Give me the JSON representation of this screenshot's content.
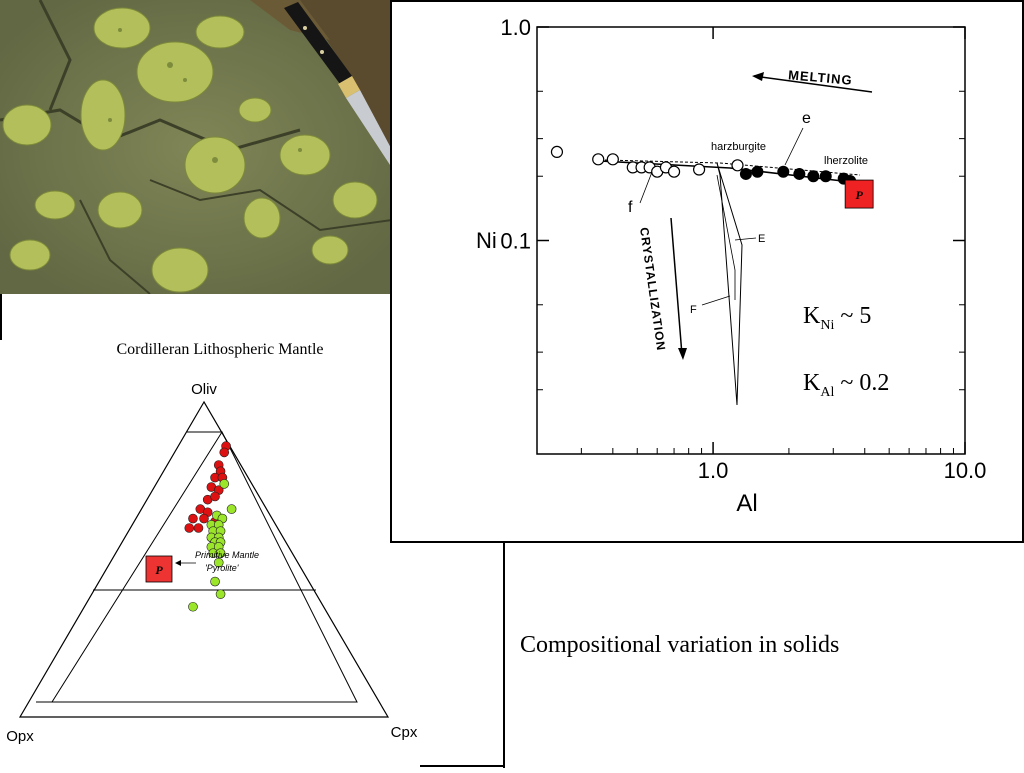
{
  "caption": "Compositional variation in solids",
  "ternary": {
    "title": "Cordilleran Lithospheric Mantle",
    "apex_top": "Oliv",
    "apex_left": "Opx",
    "apex_right": "Cpx",
    "pyrolite_symbol": "P",
    "pyrolite_note_line1": "Primitive Mantle",
    "pyrolite_note_line2": "'Pyrolite'",
    "colors": {
      "red_points": "#dd1111",
      "green_points": "#9be52a",
      "pyrolite": "#ee3333"
    }
  },
  "chart_data": [
    {
      "type": "scatter",
      "title": "",
      "xlabel": "Al",
      "ylabel": "Ni",
      "x_scale": "log",
      "y_scale": "log",
      "xlim": [
        0.2,
        10.0
      ],
      "ylim": [
        0.01,
        1.0
      ],
      "x_tick_labels": [
        "1.0",
        "10.0"
      ],
      "y_tick_labels": [
        "0.1",
        "1.0"
      ],
      "series": [
        {
          "name": "harzburgite",
          "points": [
            [
              0.24,
              0.26
            ],
            [
              0.35,
              0.24
            ],
            [
              0.4,
              0.24
            ],
            [
              0.48,
              0.22
            ],
            [
              0.52,
              0.22
            ],
            [
              0.56,
              0.22
            ],
            [
              0.6,
              0.21
            ],
            [
              0.65,
              0.22
            ],
            [
              0.7,
              0.21
            ],
            [
              0.88,
              0.215
            ],
            [
              1.25,
              0.225
            ]
          ]
        },
        {
          "name": "lherzolite",
          "points": [
            [
              1.35,
              0.205
            ],
            [
              1.5,
              0.21
            ],
            [
              1.9,
              0.21
            ],
            [
              2.2,
              0.205
            ],
            [
              2.5,
              0.2
            ],
            [
              2.8,
              0.2
            ],
            [
              3.3,
              0.195
            ],
            [
              3.5,
              0.19
            ]
          ]
        }
      ],
      "primitive_mantle": {
        "symbol": "P",
        "x": 3.8,
        "y": 0.165
      },
      "annotations": {
        "melting": "MELTING",
        "crystallization": "CRYSTALLIZATION",
        "label_e": "e",
        "label_f": "f",
        "label_E": "E",
        "label_F": "F",
        "harzburgite": "harzburgite",
        "lherzolite": "lherzolite"
      },
      "partition_coefficients": [
        {
          "base": "K",
          "sub": "Ni",
          "rest": " ~ 5"
        },
        {
          "base": "K",
          "sub": "Al",
          "rest": " ~ 0.2"
        }
      ]
    },
    {
      "type": "scatter",
      "title": "Cordilleran Lithospheric Mantle",
      "axes": [
        "Oliv",
        "Opx",
        "Cpx"
      ],
      "series": [
        {
          "name": "red points",
          "points_xy": [
            [
              0.56,
              0.86
            ],
            [
              0.555,
              0.84
            ],
            [
              0.54,
              0.8
            ],
            [
              0.545,
              0.78
            ],
            [
              0.53,
              0.76
            ],
            [
              0.55,
              0.76
            ],
            [
              0.52,
              0.73
            ],
            [
              0.54,
              0.72
            ],
            [
              0.51,
              0.69
            ],
            [
              0.53,
              0.7
            ],
            [
              0.49,
              0.66
            ],
            [
              0.51,
              0.65
            ],
            [
              0.47,
              0.63
            ],
            [
              0.5,
              0.63
            ],
            [
              0.46,
              0.6
            ],
            [
              0.485,
              0.6
            ],
            [
              0.53,
              0.62
            ]
          ]
        },
        {
          "name": "green points",
          "points_xy": [
            [
              0.555,
              0.74
            ],
            [
              0.575,
              0.66
            ],
            [
              0.535,
              0.64
            ],
            [
              0.55,
              0.63
            ],
            [
              0.52,
              0.61
            ],
            [
              0.54,
              0.61
            ],
            [
              0.525,
              0.59
            ],
            [
              0.545,
              0.59
            ],
            [
              0.52,
              0.57
            ],
            [
              0.54,
              0.57
            ],
            [
              0.53,
              0.555
            ],
            [
              0.545,
              0.555
            ],
            [
              0.52,
              0.54
            ],
            [
              0.54,
              0.54
            ],
            [
              0.525,
              0.52
            ],
            [
              0.545,
              0.52
            ],
            [
              0.54,
              0.49
            ],
            [
              0.53,
              0.43
            ],
            [
              0.545,
              0.39
            ],
            [
              0.47,
              0.35
            ]
          ]
        }
      ],
      "primitive_mantle": {
        "symbol": "P",
        "xy": [
          0.525,
          0.5
        ]
      }
    }
  ]
}
